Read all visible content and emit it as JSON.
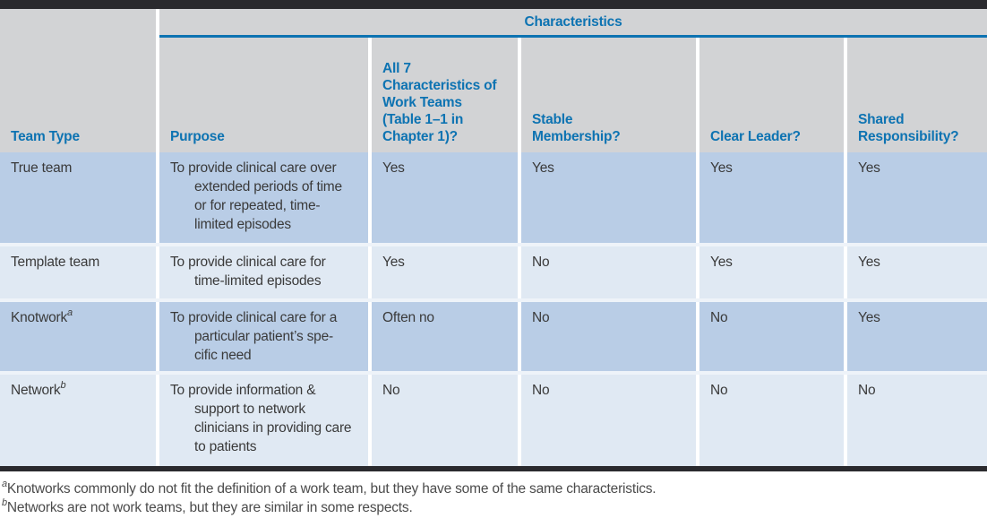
{
  "colors": {
    "bar": "#2a2a2e",
    "header_bg": "#d2d3d5",
    "blue": "#0d73b2",
    "row_dark": "#b9cde6",
    "row_light": "#e0e9f3",
    "sep": "#eef3f9",
    "body_text": "#3a3a3a",
    "footnote": "#4b4b4b"
  },
  "table": {
    "characteristics_header": "Characteristics",
    "columns": [
      [
        "Team Type"
      ],
      [
        "Purpose"
      ],
      [
        "All 7",
        "Characteristics of",
        "Work Teams",
        "(Table 1–1 in",
        "Chapter 1)?"
      ],
      [
        "Stable",
        "Membership?"
      ],
      [
        "Clear Leader?"
      ],
      [
        "Shared",
        "Responsibility?"
      ]
    ],
    "rows": [
      {
        "team": "True team",
        "sup": "",
        "purpose": [
          "To provide clinical care over",
          "extended periods of time",
          "or for repeated, time-",
          "limited episodes"
        ],
        "all7": "Yes",
        "stable": "Yes",
        "leader": "Yes",
        "shared": "Yes"
      },
      {
        "team": "Template team",
        "sup": "",
        "purpose": [
          "To provide clinical care for",
          "time-limited episodes"
        ],
        "all7": "Yes",
        "stable": "No",
        "leader": "Yes",
        "shared": "Yes"
      },
      {
        "team": "Knotwork",
        "sup": "a",
        "purpose": [
          "To provide clinical care for a",
          "particular patient’s spe-",
          "cific need"
        ],
        "all7": "Often no",
        "stable": "No",
        "leader": "No",
        "shared": "Yes"
      },
      {
        "team": "Network",
        "sup": "b",
        "purpose": [
          "To provide information &",
          "support to network",
          "clinicians in providing care",
          "to patients"
        ],
        "all7": "No",
        "stable": "No",
        "leader": "No",
        "shared": "No"
      }
    ]
  },
  "footnotes": [
    {
      "marker": "a",
      "text": "Knotworks commonly do not fit the definition of a work team, but they have some of the same characteristics."
    },
    {
      "marker": "b",
      "text": "Networks are not work teams, but they are similar in some respects."
    }
  ]
}
